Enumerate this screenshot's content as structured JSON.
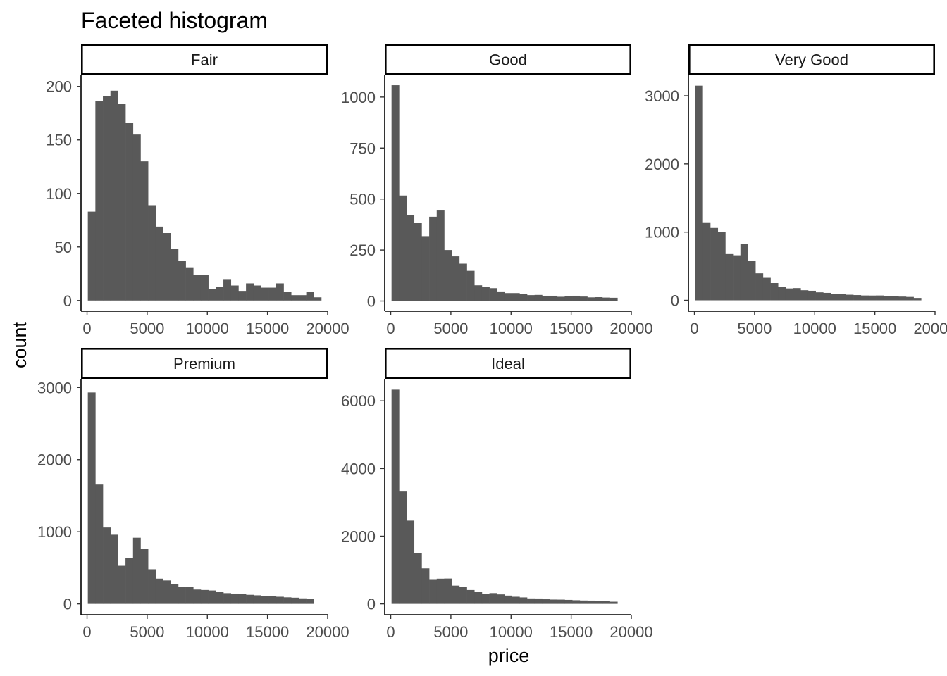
{
  "chart_data": {
    "type": "bar",
    "title": "Faceted histogram",
    "xlabel": "price",
    "ylabel": "count",
    "xlim": [
      -500,
      20000
    ],
    "bin_centers": [
      379,
      1005,
      1631,
      2257,
      2883,
      3509,
      4135,
      4761,
      5387,
      6013,
      6639,
      7265,
      7891,
      8517,
      9143,
      9769,
      10395,
      11021,
      11647,
      12273,
      12899,
      13525,
      14151,
      14777,
      15403,
      16029,
      16655,
      17281,
      17907,
      18533,
      19159
    ],
    "x_ticks": [
      0,
      5000,
      10000,
      15000,
      20000
    ],
    "grid": false,
    "panels": [
      {
        "name": "Fair",
        "y_ticks": [
          0,
          50,
          100,
          150,
          200
        ],
        "ylim": [
          -10,
          211
        ],
        "values": [
          83,
          186,
          191,
          196,
          184,
          166,
          155,
          130,
          89,
          69,
          63,
          48,
          37,
          31,
          24,
          24,
          11,
          13,
          20,
          14,
          9,
          16,
          14,
          12,
          12,
          16,
          8,
          5,
          5,
          8,
          3
        ]
      },
      {
        "name": "Good",
        "y_ticks": [
          0,
          250,
          500,
          750,
          1000
        ],
        "ylim": [
          -50,
          1110
        ],
        "values": [
          1058,
          517,
          421,
          385,
          318,
          413,
          447,
          250,
          219,
          183,
          148,
          77,
          68,
          63,
          47,
          39,
          39,
          34,
          29,
          30,
          26,
          26,
          21,
          23,
          26,
          22,
          18,
          19,
          17,
          16,
          0
        ]
      },
      {
        "name": "Very Good",
        "y_ticks": [
          0,
          1000,
          2000,
          3000
        ],
        "ylim": [
          -160,
          3310
        ],
        "values": [
          3148,
          1144,
          1061,
          998,
          678,
          660,
          826,
          581,
          396,
          330,
          253,
          198,
          174,
          179,
          148,
          140,
          117,
          109,
          98,
          97,
          82,
          77,
          71,
          70,
          71,
          67,
          59,
          55,
          50,
          35,
          0
        ]
      },
      {
        "name": "Premium",
        "y_ticks": [
          0,
          1000,
          2000,
          3000
        ],
        "ylim": [
          -150,
          3120
        ],
        "values": [
          2931,
          1654,
          1059,
          959,
          528,
          637,
          917,
          760,
          480,
          350,
          325,
          272,
          236,
          234,
          199,
          193,
          186,
          163,
          149,
          143,
          138,
          126,
          119,
          107,
          104,
          99,
          91,
          86,
          77,
          72,
          0
        ]
      },
      {
        "name": "Ideal",
        "y_ticks": [
          0,
          2000,
          4000,
          6000
        ],
        "ylim": [
          -320,
          6650
        ],
        "values": [
          6330,
          3339,
          2460,
          1493,
          1048,
          731,
          745,
          749,
          540,
          498,
          410,
          348,
          296,
          318,
          280,
          245,
          211,
          191,
          162,
          160,
          137,
          128,
          126,
          118,
          108,
          100,
          97,
          92,
          86,
          64,
          0
        ]
      }
    ]
  }
}
